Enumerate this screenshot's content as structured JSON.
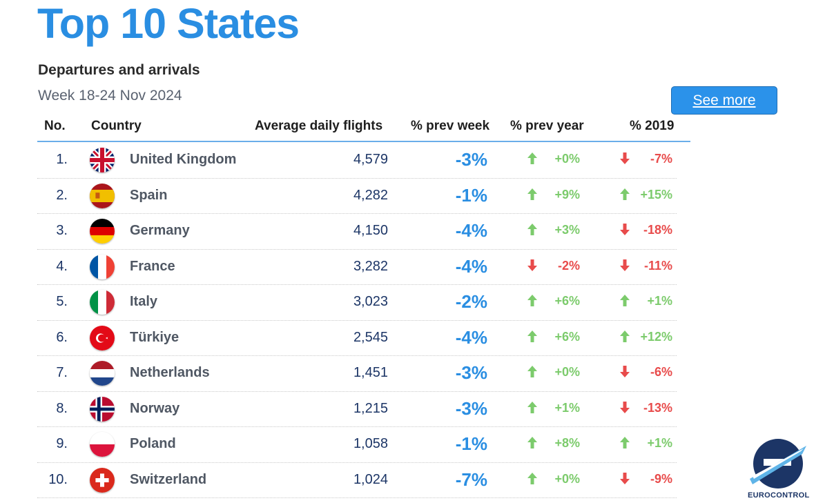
{
  "header": {
    "title": "Top 10 States",
    "subtitle": "Departures and arrivals",
    "period": "Week 18-24 Nov 2024",
    "see_more_label": "See more"
  },
  "table": {
    "columns": {
      "no": "No.",
      "country": "Country",
      "flights": "Average daily flights",
      "prev_week": "% prev week",
      "prev_year": "% prev year",
      "y2019": "% 2019"
    },
    "rows": [
      {
        "rank": "1.",
        "country": "United Kingdom",
        "flag": "uk",
        "flights": "4,579",
        "prev_week": "-3%",
        "prev_year": "+0%",
        "prev_year_dir": "up",
        "y2019": "-7%",
        "y2019_dir": "down"
      },
      {
        "rank": "2.",
        "country": "Spain",
        "flag": "es",
        "flights": "4,282",
        "prev_week": "-1%",
        "prev_year": "+9%",
        "prev_year_dir": "up",
        "y2019": "+15%",
        "y2019_dir": "up"
      },
      {
        "rank": "3.",
        "country": "Germany",
        "flag": "de",
        "flights": "4,150",
        "prev_week": "-4%",
        "prev_year": "+3%",
        "prev_year_dir": "up",
        "y2019": "-18%",
        "y2019_dir": "down"
      },
      {
        "rank": "4.",
        "country": "France",
        "flag": "fr",
        "flights": "3,282",
        "prev_week": "-4%",
        "prev_year": "-2%",
        "prev_year_dir": "down",
        "y2019": "-11%",
        "y2019_dir": "down"
      },
      {
        "rank": "5.",
        "country": "Italy",
        "flag": "it",
        "flights": "3,023",
        "prev_week": "-2%",
        "prev_year": "+6%",
        "prev_year_dir": "up",
        "y2019": "+1%",
        "y2019_dir": "up"
      },
      {
        "rank": "6.",
        "country": "Türkiye",
        "flag": "tr",
        "flights": "2,545",
        "prev_week": "-4%",
        "prev_year": "+6%",
        "prev_year_dir": "up",
        "y2019": "+12%",
        "y2019_dir": "up"
      },
      {
        "rank": "7.",
        "country": "Netherlands",
        "flag": "nl",
        "flights": "1,451",
        "prev_week": "-3%",
        "prev_year": "+0%",
        "prev_year_dir": "up",
        "y2019": "-6%",
        "y2019_dir": "down"
      },
      {
        "rank": "8.",
        "country": "Norway",
        "flag": "no",
        "flights": "1,215",
        "prev_week": "-3%",
        "prev_year": "+1%",
        "prev_year_dir": "up",
        "y2019": "-13%",
        "y2019_dir": "down"
      },
      {
        "rank": "9.",
        "country": "Poland",
        "flag": "pl",
        "flights": "1,058",
        "prev_week": "-1%",
        "prev_year": "+8%",
        "prev_year_dir": "up",
        "y2019": "+1%",
        "y2019_dir": "up"
      },
      {
        "rank": "10.",
        "country": "Switzerland",
        "flag": "ch",
        "flights": "1,024",
        "prev_week": "-7%",
        "prev_year": "+0%",
        "prev_year_dir": "up",
        "y2019": "-9%",
        "y2019_dir": "down"
      }
    ]
  },
  "logo": {
    "text": "EUROCONTROL",
    "icon": "eurocontrol-logo-icon"
  },
  "colors": {
    "accent": "#2a8ee2",
    "up": "#7ccb6c",
    "down": "#e84b4b",
    "navy": "#1c3566"
  }
}
